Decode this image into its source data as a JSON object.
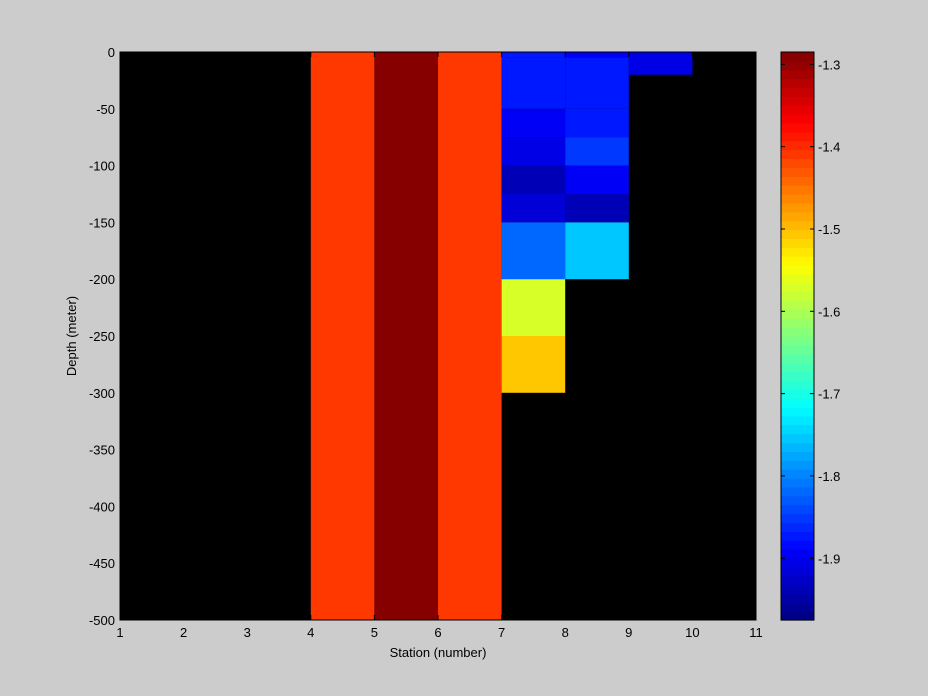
{
  "chart_data": {
    "type": "heatmap",
    "title": "",
    "xlabel": "Station (number)",
    "ylabel": "Depth (meter)",
    "xlim": [
      1,
      11
    ],
    "ylim": [
      -500,
      0
    ],
    "x_ticks": [
      1,
      2,
      3,
      4,
      5,
      6,
      7,
      8,
      9,
      10,
      11
    ],
    "x_tick_labels": [
      "1",
      "2",
      "3",
      "4",
      "5",
      "6",
      "7",
      "8",
      "9",
      "10",
      "11"
    ],
    "y_ticks": [
      0,
      -50,
      -100,
      -150,
      -200,
      -250,
      -300,
      -350,
      -400,
      -450,
      -500
    ],
    "y_tick_labels": [
      "0",
      "-50",
      "-100",
      "-150",
      "-200",
      "-250",
      "-300",
      "-350",
      "-400",
      "-450",
      "-500"
    ],
    "background_color": "#000000",
    "colormap": "jet",
    "clim": [
      -1.975,
      -1.285
    ],
    "colorbar": {
      "ticks": [
        -1.3,
        -1.4,
        -1.5,
        -1.6,
        -1.7,
        -1.8,
        -1.9
      ],
      "tick_labels": [
        "-1.3",
        "-1.4",
        "-1.5",
        "-1.6",
        "-1.7",
        "-1.8",
        "-1.9"
      ]
    },
    "cells": [
      {
        "x0": 4,
        "x1": 5,
        "y_top": 0,
        "y_bottom": -500,
        "value": -1.41
      },
      {
        "x0": 5,
        "x1": 6,
        "y_top": 0,
        "y_bottom": -500,
        "value": -1.29
      },
      {
        "x0": 6,
        "x1": 7,
        "y_top": 0,
        "y_bottom": -500,
        "value": -1.41
      },
      {
        "x0": 7,
        "x1": 8,
        "y_top": 0,
        "y_bottom": -5,
        "value": -1.87
      },
      {
        "x0": 7,
        "x1": 8,
        "y_top": -5,
        "y_bottom": -50,
        "value": -1.87
      },
      {
        "x0": 7,
        "x1": 8,
        "y_top": -50,
        "y_bottom": -75,
        "value": -1.89
      },
      {
        "x0": 7,
        "x1": 8,
        "y_top": -75,
        "y_bottom": -100,
        "value": -1.91
      },
      {
        "x0": 7,
        "x1": 8,
        "y_top": -100,
        "y_bottom": -125,
        "value": -1.94
      },
      {
        "x0": 7,
        "x1": 8,
        "y_top": -125,
        "y_bottom": -150,
        "value": -1.92
      },
      {
        "x0": 7,
        "x1": 8,
        "y_top": -150,
        "y_bottom": -200,
        "value": -1.82
      },
      {
        "x0": 7,
        "x1": 8,
        "y_top": -200,
        "y_bottom": -250,
        "value": -1.57
      },
      {
        "x0": 7,
        "x1": 8,
        "y_top": -250,
        "y_bottom": -300,
        "value": -1.51
      },
      {
        "x0": 8,
        "x1": 9,
        "y_top": 0,
        "y_bottom": -5,
        "value": -1.89
      },
      {
        "x0": 8,
        "x1": 9,
        "y_top": -5,
        "y_bottom": -50,
        "value": -1.87
      },
      {
        "x0": 8,
        "x1": 9,
        "y_top": -50,
        "y_bottom": -75,
        "value": -1.87
      },
      {
        "x0": 8,
        "x1": 9,
        "y_top": -75,
        "y_bottom": -100,
        "value": -1.85
      },
      {
        "x0": 8,
        "x1": 9,
        "y_top": -100,
        "y_bottom": -125,
        "value": -1.89
      },
      {
        "x0": 8,
        "x1": 9,
        "y_top": -125,
        "y_bottom": -150,
        "value": -1.94
      },
      {
        "x0": 8,
        "x1": 9,
        "y_top": -150,
        "y_bottom": -200,
        "value": -1.75
      },
      {
        "x0": 9,
        "x1": 10,
        "y_top": 0,
        "y_bottom": -20,
        "value": -1.9
      }
    ]
  }
}
